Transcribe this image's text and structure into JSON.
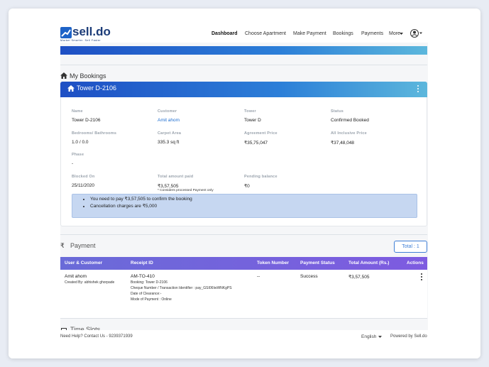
{
  "header": {
    "logo": "sell.do",
    "tagline": "Market Smarter. Sell Faster",
    "nav": [
      "Dashboard",
      "Choose Apartment",
      "Make Payment",
      "Bookings",
      "Payments",
      "More"
    ]
  },
  "bookings": {
    "title": "My Bookings",
    "card": {
      "title": "Tower D-2106",
      "fields": [
        {
          "label": "Name",
          "value": "Tower D-2106"
        },
        {
          "label": "Customer",
          "value": "Amit ahom"
        },
        {
          "label": "Tower",
          "value": "Tower D"
        },
        {
          "label": "Status",
          "value": "Confirmed Booked"
        },
        {
          "label": "Bedrooms/ Bathrooms",
          "value": "1.0 / 0.0"
        },
        {
          "label": "Carpet Area",
          "value": "335.3 sq ft"
        },
        {
          "label": "Agreement Price",
          "value": "₹35,75,047"
        },
        {
          "label": "All Inclusive Price",
          "value": "₹37,48,048"
        },
        {
          "label": "Phase",
          "value": "-"
        },
        {
          "label": "Blocked On",
          "value": "25/11/2020"
        },
        {
          "label": "Total amount paid",
          "value": "₹3,57,505"
        },
        {
          "label": "Pending balance",
          "value": "₹0"
        }
      ],
      "note": "* Considers processed Payment only",
      "info": [
        "You need to pay ₹3,57,505 to confirm the booking",
        "Cancellation charges are ₹5,000"
      ]
    }
  },
  "payment": {
    "icon": "₹",
    "title": "Payment",
    "total": "Total : 1",
    "columns": [
      "User & Customer",
      "Receipt ID",
      "Token Number",
      "Payment Status",
      "Total Amount (Rs.)",
      "Actions"
    ],
    "row": {
      "user": "Amit ahom",
      "created_by": "Created By: abhishek ghorpade",
      "receipt": "AM-TO-410",
      "details": [
        "Booking: Tower D-2106",
        "Cheque Number / Transaction Identifier : pay_GSI06IwWNKgPS",
        "Date of Clearance:-",
        "Mode of Payment : Online"
      ],
      "token": "--",
      "status": "Success",
      "amount": "₹3,57,505"
    }
  },
  "time_slots": {
    "title": "Time Slots"
  },
  "footer": {
    "help": "Need Help? Contact Us - 9239371939",
    "language": "English",
    "powered": "Powered by Sell.do"
  }
}
